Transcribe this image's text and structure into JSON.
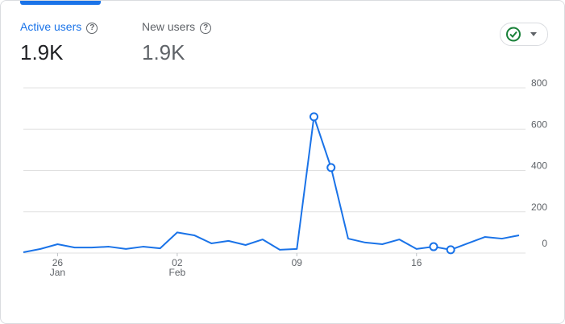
{
  "metrics": [
    {
      "label": "Active users",
      "value": "1.9K"
    },
    {
      "label": "New users",
      "value": "1.9K"
    }
  ],
  "chart_data": {
    "type": "line",
    "categories": [
      null,
      null,
      "26",
      null,
      null,
      null,
      null,
      null,
      null,
      "02",
      null,
      null,
      null,
      null,
      null,
      null,
      "09",
      null,
      null,
      null,
      null,
      null,
      null,
      "16",
      null,
      null,
      null,
      null,
      null,
      null
    ],
    "month_labels": [
      null,
      null,
      "Jan",
      null,
      null,
      null,
      null,
      null,
      null,
      "Feb",
      null,
      null,
      null,
      null,
      null,
      null,
      null,
      null,
      null,
      null,
      null,
      null,
      null,
      null,
      null,
      null,
      null,
      null,
      null,
      null
    ],
    "series": [
      {
        "name": "Active users",
        "color": "#1a73e8",
        "values": [
          4,
          20,
          43,
          27,
          27,
          31,
          20,
          31,
          23,
          100,
          86,
          47,
          59,
          39,
          66,
          16,
          20,
          660,
          414,
          70,
          51,
          43,
          66,
          20,
          31,
          16,
          47,
          78,
          70,
          86
        ]
      }
    ],
    "highlighted": [
      17,
      18,
      24,
      25
    ],
    "ylim": [
      0,
      800
    ],
    "yticks": [
      0,
      200,
      400,
      600,
      800
    ],
    "grid": true
  }
}
